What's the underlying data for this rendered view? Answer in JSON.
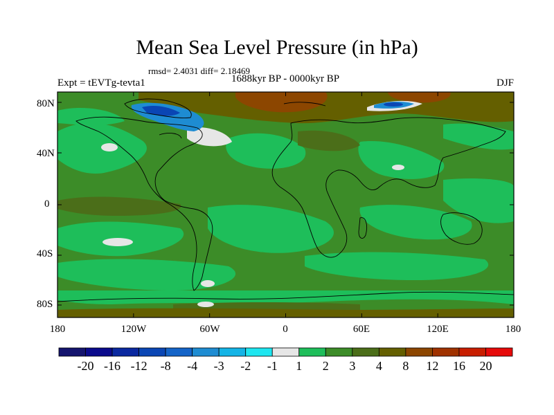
{
  "header": {
    "title": "Mean Sea Level Pressure (in hPa)",
    "stats": "rmsd= 2.4031 diff= 2.18469",
    "experiment": "Expt = tEVTg-tevta1",
    "period": "1688kyr BP - 0000kyr BP",
    "season": "DJF"
  },
  "axes": {
    "lat_ticks": [
      "80N",
      "40N",
      "0",
      "40S",
      "80S"
    ],
    "lon_ticks": [
      "180",
      "120W",
      "60W",
      "0",
      "60E",
      "120E",
      "180"
    ]
  },
  "colorbar": {
    "labels": [
      "-20",
      "-16",
      "-12",
      "-8",
      "-4",
      "-3",
      "-2",
      "-1",
      "1",
      "2",
      "3",
      "4",
      "8",
      "12",
      "16",
      "20"
    ],
    "colors": [
      "#14146e",
      "#0a0a8c",
      "#0a28a0",
      "#0a46b4",
      "#1464c8",
      "#1e8cd2",
      "#14b4e6",
      "#1ee6f0",
      "#e6e6e6",
      "#1ebe5a",
      "#3c8c28",
      "#4b6e19",
      "#645f00",
      "#8c4600",
      "#a03200",
      "#c81e00",
      "#e60a0a"
    ]
  },
  "field_colors": {
    "very_low": "#0a46b4",
    "low": "#1464c8",
    "mid_low": "#1e8cd2",
    "near_zero": "#e6e6e6",
    "plus2": "#1ebe5a",
    "plus3": "#3c8c28",
    "plus4": "#4b6e19",
    "plus8": "#645f00",
    "plus12": "#8c4600"
  }
}
